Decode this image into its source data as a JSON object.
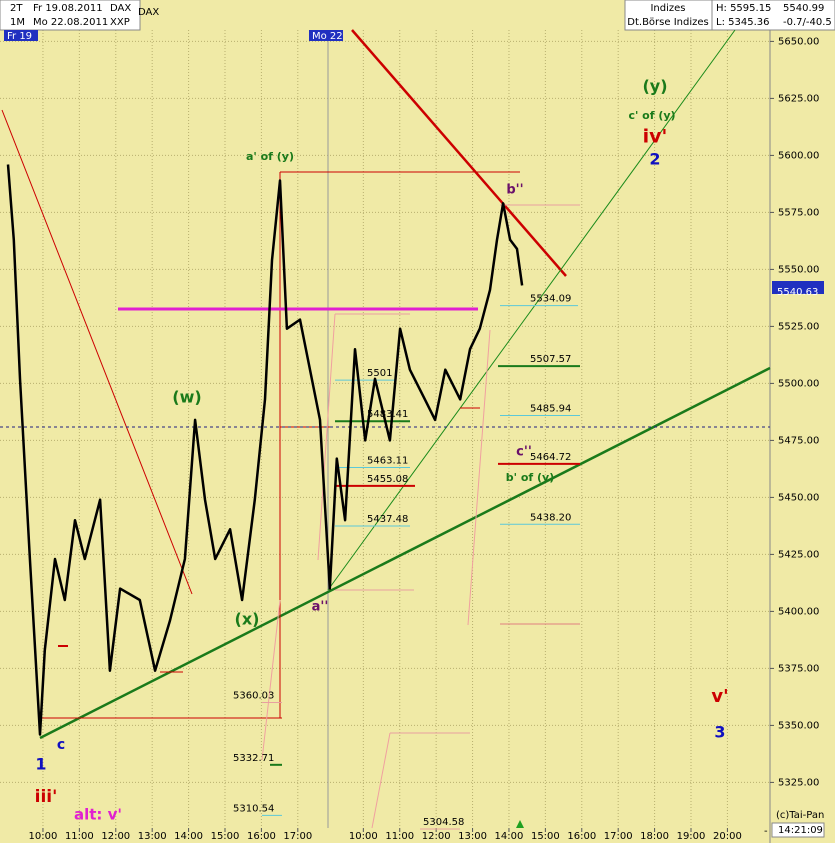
{
  "header": {
    "period1": "2T",
    "date1": "Fr 19.08.2011",
    "period2": "1M",
    "date2": "Mo 22.08.2011",
    "code": "XXP",
    "index": "DAX",
    "group": "Indizes",
    "exchange": "Dt.Börse Indizes",
    "high": "H: 5595.15",
    "low": "L: 5345.36",
    "last": "5540.99",
    "change": "-0.7/-40.5",
    "day1": "Fr 19",
    "day2": "Mo 22",
    "copyright": "(c)Tai-Pan",
    "clock": "14:21:09",
    "axis_end": "-"
  },
  "chart_data": {
    "type": "line",
    "series": [
      {
        "name": "DAX",
        "color": "#000000",
        "values": [
          5596,
          5563,
          5502,
          5423,
          5346,
          5383,
          5423,
          5405,
          5440,
          5423,
          5449,
          5374,
          5410,
          5405,
          5374,
          5396,
          5423,
          5484,
          5449,
          5423,
          5436,
          5405,
          5449,
          5493,
          5554,
          5589,
          5524,
          5528,
          5484,
          5410,
          5467,
          5440,
          5515,
          5475,
          5502,
          5475,
          5524,
          5506,
          5493,
          5484,
          5506,
          5493,
          5515,
          5524,
          5541,
          5563,
          5579,
          5563,
          5559,
          5543
        ]
      }
    ],
    "x": [
      0.04,
      0.2,
      0.37,
      0.64,
      0.92,
      1.05,
      1.33,
      1.6,
      1.88,
      2.15,
      2.57,
      2.84,
      3.12,
      3.66,
      4.08,
      4.49,
      4.9,
      5.18,
      5.45,
      5.73,
      6.14,
      6.47,
      6.82,
      7.1,
      7.29,
      7.51,
      7.7,
      8.06,
      8.61,
      8.88,
      9.07,
      9.3,
      9.57,
      9.85,
      10.12,
      10.53,
      10.81,
      11.08,
      11.49,
      11.77,
      12.05,
      12.46,
      12.73,
      13.0,
      13.28,
      13.47,
      13.64,
      13.83,
      14.02,
      14.16
    ],
    "xlim": [
      -0.18,
      20.97
    ],
    "xticks": [
      {
        "value": 1,
        "label": "10:00"
      },
      {
        "value": 2,
        "label": "11:00"
      },
      {
        "value": 3,
        "label": "12:00"
      },
      {
        "value": 4,
        "label": "13:00"
      },
      {
        "value": 5,
        "label": "14:00"
      },
      {
        "value": 6,
        "label": "15:00"
      },
      {
        "value": 7,
        "label": "16:00"
      },
      {
        "value": 8,
        "label": "17:00"
      },
      {
        "value": 9.8,
        "label": "10:00"
      },
      {
        "value": 10.8,
        "label": "11:00"
      },
      {
        "value": 11.8,
        "label": "12:00"
      },
      {
        "value": 12.8,
        "label": "13:00"
      },
      {
        "value": 13.8,
        "label": "14:00"
      },
      {
        "value": 14.8,
        "label": "15:00"
      },
      {
        "value": 15.8,
        "label": "16:00"
      },
      {
        "value": 16.8,
        "label": "17:00"
      },
      {
        "value": 17.8,
        "label": "18:00"
      },
      {
        "value": 18.8,
        "label": "19:00"
      },
      {
        "value": 19.8,
        "label": "20:00"
      }
    ],
    "ylim": [
      5305,
      5655
    ],
    "yticks": [
      {
        "value": 5325,
        "label": "5325.00"
      },
      {
        "value": 5350,
        "label": "5350.00"
      },
      {
        "value": 5375,
        "label": "5375.00"
      },
      {
        "value": 5400,
        "label": "5400.00"
      },
      {
        "value": 5425,
        "label": "5425.00"
      },
      {
        "value": 5450,
        "label": "5450.00"
      },
      {
        "value": 5475,
        "label": "5475.00"
      },
      {
        "value": 5500,
        "label": "5500.00"
      },
      {
        "value": 5525,
        "label": "5525.00"
      },
      {
        "value": 5550,
        "label": "5550.00"
      },
      {
        "value": 5575,
        "label": "5575.00"
      },
      {
        "value": 5600,
        "label": "5600.00"
      },
      {
        "value": 5625,
        "label": "5625.00"
      },
      {
        "value": 5650,
        "label": "5650.00"
      }
    ],
    "grid": true,
    "last_price": 5540.63,
    "levels": [
      {
        "value": 5534.09,
        "color": "#5cc8d8"
      },
      {
        "value": 5507.57,
        "color": "#1a7a1a"
      },
      {
        "value": 5485.94,
        "color": "#5cc8d8"
      },
      {
        "value": 5464.72,
        "color": "#cc0000"
      },
      {
        "value": {
          "value": 5438.2,
          "label": "5438.20"
        },
        "color": "#5cc8d8"
      },
      {
        "value": {
          "value": 5501.45,
          "label": "5501"
        },
        "color": "#5cc8d8"
      },
      {
        "value": 5483.41,
        "color": "#1a7a1a"
      },
      {
        "value": 5463.11,
        "color": "#5cc8d8"
      },
      {
        "value": 5455.08,
        "color": "#cc0000"
      },
      {
        "value": 5437.48,
        "color": "#5cc8d8"
      },
      {
        "value": 5360.03,
        "color": "#e8a0a0"
      },
      {
        "value": 5332.71,
        "color": "#1a7a1a"
      },
      {
        "value": 5310.54,
        "color": "#5cc8d8"
      },
      {
        "value": 5304.58,
        "color": "#e8a0a0"
      }
    ],
    "wave_labels": [
      {
        "text": "(y)",
        "color": "#1a7a1a"
      },
      {
        "text": "c' of (y)",
        "color": "#1a7a1a"
      },
      {
        "text": "iv'",
        "color": "#cc0000"
      },
      {
        "text": "2",
        "color": "#1010c0"
      },
      {
        "text": "a' of (y)",
        "color": "#1a7a1a"
      },
      {
        "text": "b''",
        "color": "#6a106a"
      },
      {
        "text": "(w)",
        "color": "#1a7a1a"
      },
      {
        "text": "(x)",
        "color": "#1a7a1a"
      },
      {
        "text": "a''",
        "color": "#6a106a"
      },
      {
        "text": "c''",
        "color": "#6a106a"
      },
      {
        "text": "b' of (y)",
        "color": "#1a7a1a"
      },
      {
        "text": "1",
        "color": "#1010c0"
      },
      {
        "text": "c",
        "color": "#1010c0"
      },
      {
        "text": "iii'",
        "color": "#cc0000"
      },
      {
        "text": "alt: v'",
        "color": "#e020d0"
      },
      {
        "text": "v'",
        "color": "#cc0000"
      },
      {
        "text": "3",
        "color": "#1010c0"
      }
    ]
  }
}
